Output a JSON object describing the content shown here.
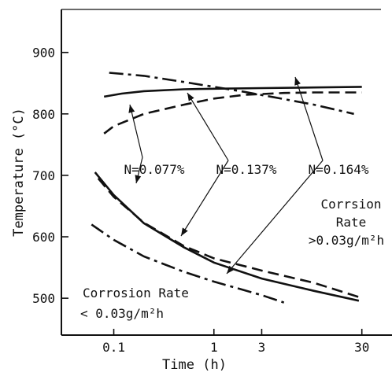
{
  "chart_data": {
    "type": "line",
    "xlabel": "Time (h)",
    "ylabel": "Temperature (°C)",
    "x_scale": "log",
    "xlim": [
      0.03,
      60
    ],
    "ylim": [
      440,
      970
    ],
    "x_ticks": [
      0.1,
      1,
      3,
      30
    ],
    "x_tick_labels": [
      "0.1",
      "1",
      "3",
      "30"
    ],
    "y_ticks": [
      500,
      600,
      700,
      800,
      900
    ],
    "y_tick_labels": [
      "500",
      "600",
      "700",
      "800",
      "900"
    ],
    "grid": false,
    "series": [
      {
        "name": "N=0.077%",
        "style": "dashed",
        "upper": [
          [
            0.08,
            768
          ],
          [
            0.1,
            780
          ],
          [
            0.2,
            800
          ],
          [
            0.5,
            815
          ],
          [
            1,
            825
          ],
          [
            2,
            831
          ],
          [
            5,
            834
          ],
          [
            10,
            835
          ],
          [
            30,
            835
          ]
        ],
        "lower": [
          [
            0.07,
            695
          ],
          [
            0.1,
            665
          ],
          [
            0.2,
            623
          ],
          [
            0.5,
            585
          ],
          [
            1,
            565
          ],
          [
            3,
            545
          ],
          [
            10,
            525
          ],
          [
            28,
            502
          ]
        ]
      },
      {
        "name": "N=0.137%",
        "style": "solid",
        "upper": [
          [
            0.08,
            828
          ],
          [
            0.12,
            833
          ],
          [
            0.2,
            837
          ],
          [
            0.5,
            840
          ],
          [
            1,
            841
          ],
          [
            3,
            842
          ],
          [
            10,
            843
          ],
          [
            30,
            844
          ]
        ],
        "lower": [
          [
            0.065,
            705
          ],
          [
            0.1,
            668
          ],
          [
            0.2,
            622
          ],
          [
            0.5,
            583
          ],
          [
            1,
            558
          ],
          [
            3,
            532
          ],
          [
            10,
            512
          ],
          [
            28,
            496
          ]
        ]
      },
      {
        "name": "N=0.164%",
        "style": "dash-dot",
        "upper": [
          [
            0.09,
            867
          ],
          [
            0.2,
            862
          ],
          [
            0.5,
            852
          ],
          [
            1,
            844
          ],
          [
            2,
            836
          ],
          [
            4,
            827
          ],
          [
            10,
            815
          ],
          [
            25,
            800
          ]
        ],
        "lower": [
          [
            0.06,
            620
          ],
          [
            0.1,
            595
          ],
          [
            0.2,
            568
          ],
          [
            0.5,
            543
          ],
          [
            1,
            527
          ],
          [
            3,
            505
          ],
          [
            5,
            493
          ]
        ]
      }
    ],
    "annotations": [
      {
        "text": "N=0.077%"
      },
      {
        "text": "N=0.137%"
      },
      {
        "text": "N=0.164%"
      },
      {
        "text": "Corrsion Rate >0.03g/m²h",
        "lines": [
          "Corrsion",
          "Rate",
          ">0.03g/m²h"
        ]
      },
      {
        "text": "Corrosion Rate < 0.03g/m²h",
        "lines": [
          "Corrosion Rate",
          "< 0.03g/m²h"
        ]
      }
    ],
    "style": {
      "line_color": "#111111",
      "background": "#ffffff"
    }
  }
}
